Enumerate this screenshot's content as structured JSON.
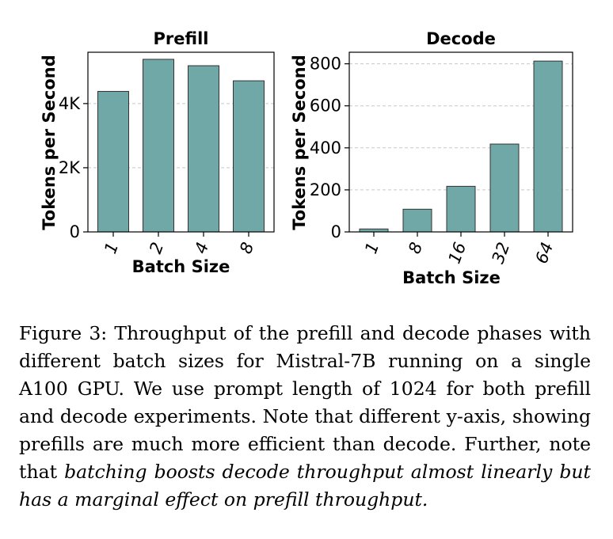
{
  "colors": {
    "bar_fill": "#6fa8a6",
    "bar_stroke": "#333333",
    "grid": "#c8c8c8"
  },
  "chart_data": [
    {
      "type": "bar",
      "title": "Prefill",
      "xlabel": "Batch Size",
      "ylabel": "Tokens per Second",
      "categories": [
        "1",
        "2",
        "4",
        "8"
      ],
      "values": [
        4380,
        5380,
        5180,
        4710
      ],
      "ylim": [
        0,
        5600
      ],
      "yticks": [
        0,
        2000,
        4000
      ],
      "ytick_labels": [
        "0",
        "2K",
        "4K"
      ],
      "grid": true
    },
    {
      "type": "bar",
      "title": "Decode",
      "xlabel": "Batch Size",
      "ylabel": "Tokens per Second",
      "categories": [
        "1",
        "8",
        "16",
        "32",
        "64"
      ],
      "values": [
        14,
        108,
        217,
        418,
        813
      ],
      "ylim": [
        0,
        855
      ],
      "yticks": [
        0,
        200,
        400,
        600,
        800
      ],
      "ytick_labels": [
        "0",
        "200",
        "400",
        "600",
        "800"
      ],
      "grid": true
    }
  ],
  "caption": {
    "normal": "Figure 3: Throughput of the prefill and decode phases with different batch sizes for Mistral-7B running on a single A100 GPU. We use prompt length of 1024 for both prefill and decode experiments. Note that different y-axis, showing prefills are much more efficient than decode. Further, note that",
    "italic": "batching boosts decode throughput almost linearly but has a marginal effect on prefill throughput."
  }
}
